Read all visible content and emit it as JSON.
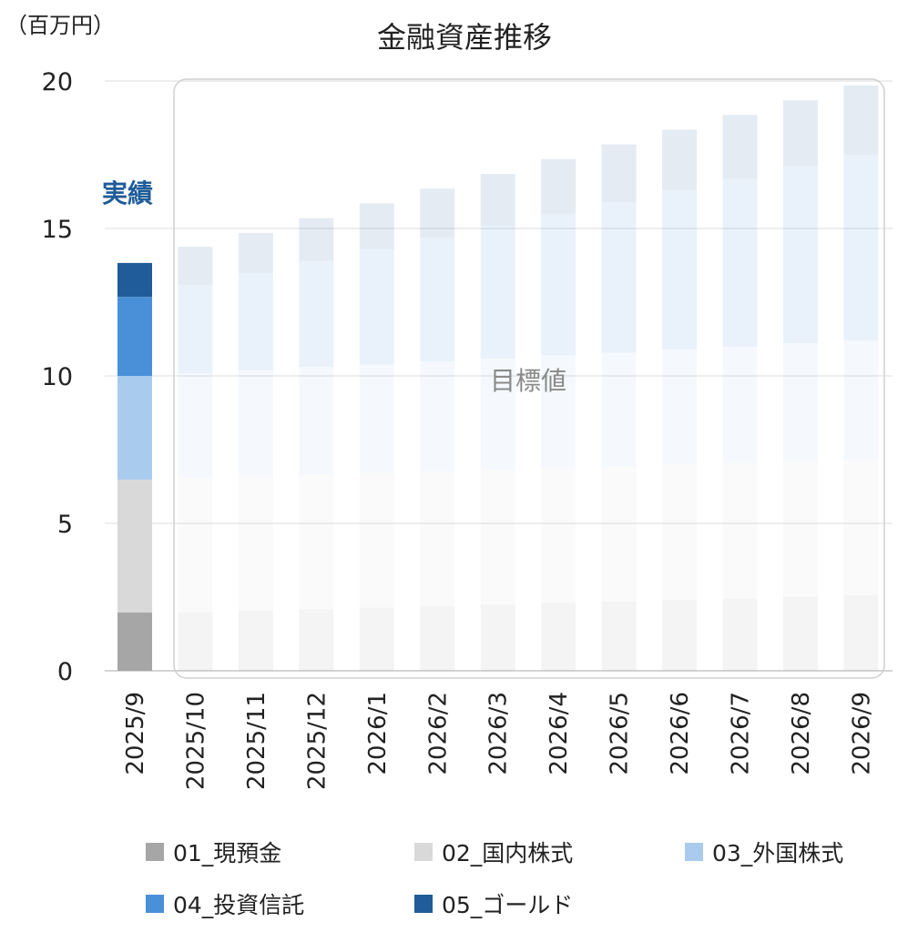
{
  "chart_data": {
    "type": "bar",
    "stacked": true,
    "title": "金融資産推移",
    "ylabel": "（百万円）",
    "ylim": [
      0,
      20
    ],
    "yticks": [
      0,
      5,
      10,
      15,
      20
    ],
    "grid": true,
    "categories": [
      "2025/9",
      "2025/10",
      "2025/11",
      "2025/12",
      "2026/1",
      "2026/2",
      "2026/3",
      "2026/4",
      "2026/5",
      "2026/6",
      "2026/7",
      "2026/8",
      "2026/9"
    ],
    "actual_label": "実績",
    "target_label": "目標値",
    "actual_count": 1,
    "series": [
      {
        "name": "01_現預金",
        "color": "#a6a6a6",
        "values": [
          1.98,
          1.98,
          2.03,
          2.09,
          2.14,
          2.19,
          2.24,
          2.3,
          2.35,
          2.4,
          2.45,
          2.51,
          2.56
        ]
      },
      {
        "name": "02_国内株式",
        "color": "#d9d9d9",
        "values": [
          4.5,
          4.56,
          4.56,
          4.57,
          4.57,
          4.57,
          4.58,
          4.58,
          4.58,
          4.59,
          4.59,
          4.6,
          4.6
        ]
      },
      {
        "name": "03_外国株式",
        "color": "#a9cbee",
        "values": [
          3.52,
          3.55,
          3.59,
          3.64,
          3.68,
          3.73,
          3.77,
          3.82,
          3.86,
          3.91,
          3.95,
          4.0,
          4.04
        ]
      },
      {
        "name": "04_投資信託",
        "color": "#4a90d9",
        "values": [
          2.68,
          3.0,
          3.3,
          3.6,
          3.9,
          4.2,
          4.5,
          4.8,
          5.1,
          5.4,
          5.7,
          6.0,
          6.3
        ]
      },
      {
        "name": "05_ゴールド",
        "color": "#1f5c99",
        "values": [
          1.15,
          1.29,
          1.37,
          1.45,
          1.56,
          1.66,
          1.76,
          1.85,
          1.96,
          2.05,
          2.16,
          2.24,
          2.35
        ]
      }
    ],
    "legend_position": "bottom"
  }
}
